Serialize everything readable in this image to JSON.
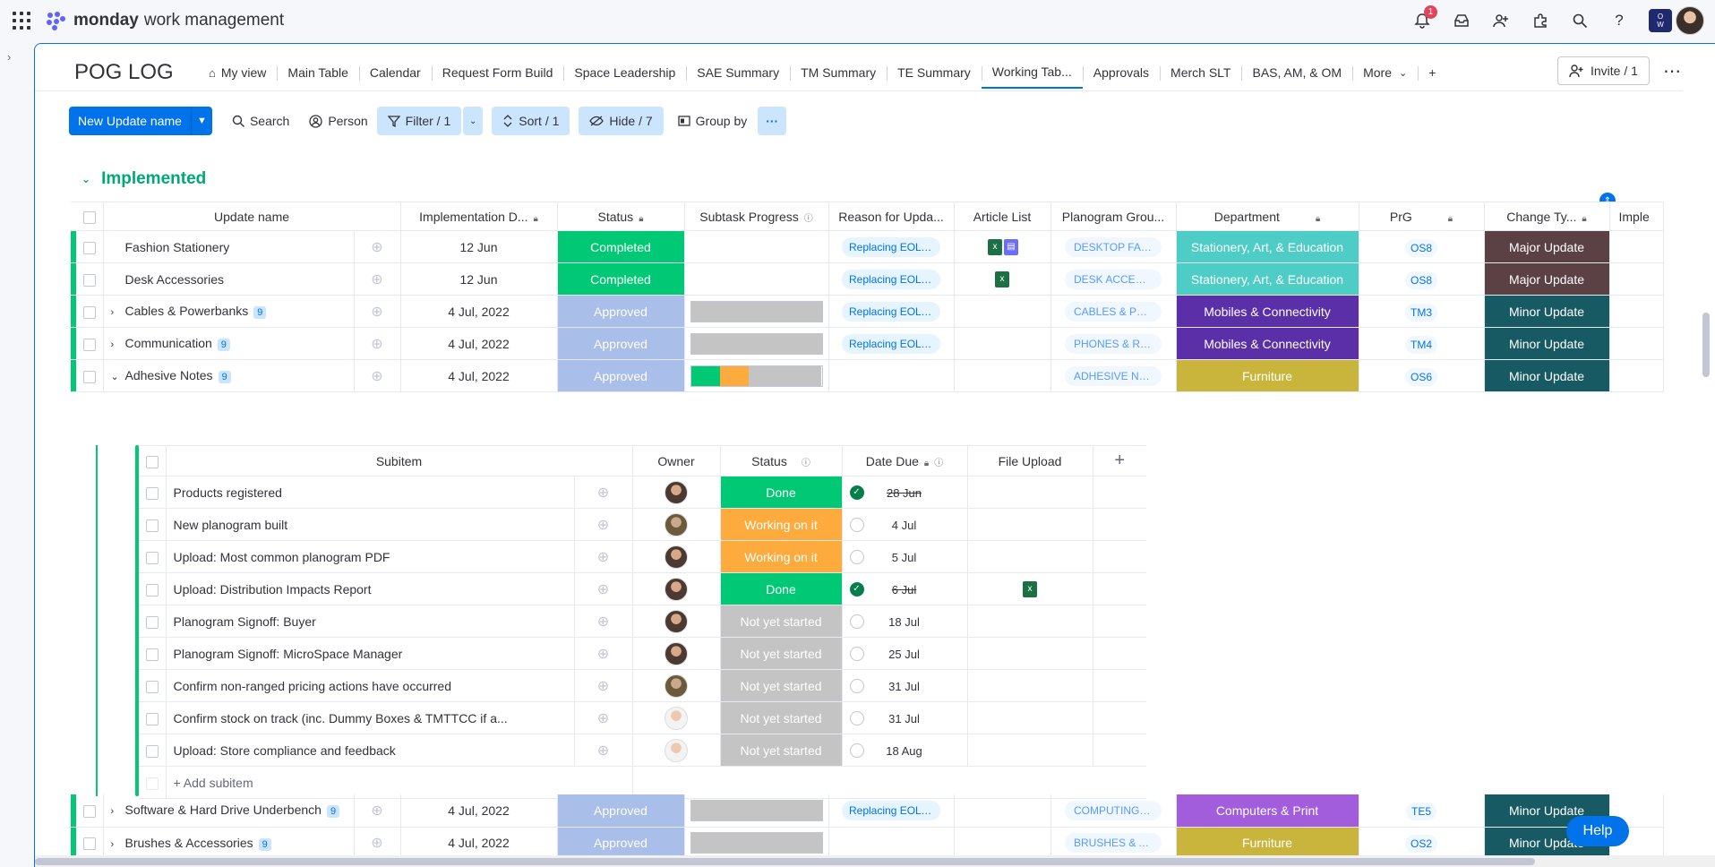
{
  "app": {
    "brand": "monday",
    "brand_sub": "work management",
    "notif_count": "1",
    "ws_initials_top": "O",
    "ws_initials_bottom": "W"
  },
  "board": {
    "title": "POG LOG"
  },
  "tabs": [
    {
      "label": "My view"
    },
    {
      "label": "Main Table"
    },
    {
      "label": "Calendar"
    },
    {
      "label": "Request Form Build"
    },
    {
      "label": "Space Leadership"
    },
    {
      "label": "SAE Summary"
    },
    {
      "label": "TM Summary"
    },
    {
      "label": "TE Summary"
    },
    {
      "label": "Working Tab..."
    },
    {
      "label": "Approvals"
    },
    {
      "label": "Merch SLT"
    },
    {
      "label": "BAS, AM, & OM"
    },
    {
      "label": "More"
    },
    {
      "label": "+"
    }
  ],
  "invite": {
    "label": "Invite / 1"
  },
  "toolbar": {
    "new_item": "New Update name",
    "search": "Search",
    "person": "Person",
    "filter": "Filter / 1",
    "sort": "Sort / 1",
    "hide": "Hide / 7",
    "group_by": "Group by"
  },
  "group": {
    "title": "Implemented",
    "color": "#00c875"
  },
  "columns": {
    "name": "Update name",
    "impl_date": "Implementation D...",
    "status": "Status",
    "subtask": "Subtask Progress",
    "reason": "Reason for Upda...",
    "article": "Article List",
    "planogram": "Planogram Grou...",
    "dept": "Department",
    "prg": "PrG",
    "change": "Change Ty...",
    "impl_more": "Imple"
  },
  "rows_top": [
    {
      "name": "Fashion Stationery",
      "date": "12 Jun",
      "status": "Completed",
      "reason": "Replacing EOL pr...",
      "planogram": "DESKTOP FASHI...",
      "dept": "Stationery, Art, & Education",
      "prg": "OS8",
      "change": "Major Update"
    },
    {
      "name": "Desk Accessories",
      "date": "12 Jun",
      "status": "Completed",
      "reason": "Replacing EOL pr...",
      "planogram": "DESK ACCESSOR...",
      "dept": "Stationery, Art, & Education",
      "prg": "OS8",
      "change": "Major Update"
    },
    {
      "name": "Cables & Powerbanks",
      "count": "9",
      "date": "4 Jul, 2022",
      "status": "Approved",
      "reason": "Replacing EOL pr...",
      "planogram": "CABLES & POWE...",
      "dept": "Mobiles & Connectivity",
      "prg": "TM3",
      "change": "Minor Update"
    },
    {
      "name": "Communication",
      "count": "9",
      "date": "4 Jul, 2022",
      "status": "Approved",
      "reason": "Replacing EOL pr...",
      "planogram": "PHONES & RECO...",
      "dept": "Mobiles & Connectivity",
      "prg": "TM4",
      "change": "Minor Update"
    },
    {
      "name": "Adhesive Notes",
      "count": "9",
      "date": "4 Jul, 2022",
      "status": "Approved",
      "reason": "",
      "planogram": "ADHESIVE NOTES",
      "dept": "Furniture",
      "prg": "OS6",
      "change": "Minor Update"
    }
  ],
  "subtable": {
    "columns": {
      "name": "Subitem",
      "owner": "Owner",
      "status": "Status",
      "due": "Date Due",
      "file": "File Upload",
      "add": "+"
    },
    "rows": [
      {
        "name": "Products registered",
        "status": "Done",
        "due": "28 Jun"
      },
      {
        "name": "New planogram built",
        "status": "Working on it",
        "due": "4 Jul"
      },
      {
        "name": "Upload: Most common planogram PDF",
        "status": "Working on it",
        "due": "5 Jul"
      },
      {
        "name": "Upload: Distribution Impacts Report",
        "status": "Done",
        "due": "6 Jul"
      },
      {
        "name": "Planogram Signoff: Buyer",
        "status": "Not yet started",
        "due": "18 Jul"
      },
      {
        "name": "Planogram Signoff: MicroSpace Manager",
        "status": "Not yet started",
        "due": "25 Jul"
      },
      {
        "name": "Confirm non-ranged pricing actions have occurred",
        "status": "Not yet started",
        "due": "31 Jul"
      },
      {
        "name": "Confirm stock on track (inc. Dummy Boxes & TMTTCC if a...",
        "status": "Not yet started",
        "due": "31 Jul"
      },
      {
        "name": "Upload: Store compliance and feedback",
        "status": "Not yet started",
        "due": "18 Aug"
      }
    ],
    "add_label": "+ Add subitem"
  },
  "rows_bottom": [
    {
      "name": "Software & Hard Drive Underbench",
      "count": "9",
      "date": "4 Jul, 2022",
      "status": "Approved",
      "reason": "Replacing EOL pr...",
      "planogram": "COMPUTING UN...",
      "dept": "Computers & Print",
      "prg": "TE5",
      "change": "Minor Update"
    },
    {
      "name": "Brushes & Accessories",
      "count": "9",
      "date": "4 Jul, 2022",
      "status": "Approved",
      "reason": "",
      "planogram": "BRUSHES & ACC...",
      "dept": "Furniture",
      "prg": "OS2",
      "change": "Minor Update"
    }
  ],
  "help": {
    "label": "Help"
  },
  "colors": {
    "completed": "#00c875",
    "approved": "#a9bee8",
    "done": "#00c875",
    "working": "#fdab3d",
    "not_started": "#c4c4c4",
    "stationery": "#4eccc6",
    "mobiles": "#5b2fa7",
    "furniture": "#c9b53b",
    "computers": "#a25ddc",
    "major": "#5b4044",
    "minor": "#175a63"
  }
}
